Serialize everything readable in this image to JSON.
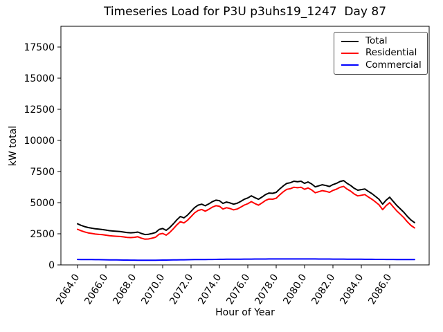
{
  "chart_data": {
    "type": "line",
    "title": "Timeseries Load for P3U p3uhs19_1247  Day 87",
    "xlabel": "Hour of Year",
    "ylabel": "kW total",
    "xlim": [
      2062.83,
      2088.78
    ],
    "ylim": [
      0,
      19166
    ],
    "grid": false,
    "legend_position": "upper right",
    "x_ticks": [
      {
        "value": 2064.0,
        "label": "2064.0"
      },
      {
        "value": 2066.0,
        "label": "2066.0"
      },
      {
        "value": 2068.0,
        "label": "2068.0"
      },
      {
        "value": 2070.0,
        "label": "2070.0"
      },
      {
        "value": 2072.0,
        "label": "2072.0"
      },
      {
        "value": 2074.0,
        "label": "2074.0"
      },
      {
        "value": 2076.0,
        "label": "2076.0"
      },
      {
        "value": 2078.0,
        "label": "2078.0"
      },
      {
        "value": 2080.0,
        "label": "2080.0"
      },
      {
        "value": 2082.0,
        "label": "2082.0"
      },
      {
        "value": 2084.0,
        "label": "2084.0"
      },
      {
        "value": 2086.0,
        "label": "2086.0"
      }
    ],
    "y_ticks": [
      0,
      2500,
      5000,
      7500,
      10000,
      12500,
      15000,
      17500
    ],
    "x": [
      2064.0,
      2064.25,
      2064.5,
      2064.75,
      2065.0,
      2065.25,
      2065.5,
      2065.75,
      2066.0,
      2066.25,
      2066.5,
      2066.75,
      2067.0,
      2067.25,
      2067.5,
      2067.75,
      2068.0,
      2068.25,
      2068.5,
      2068.75,
      2069.0,
      2069.25,
      2069.5,
      2069.75,
      2070.0,
      2070.25,
      2070.5,
      2070.75,
      2071.0,
      2071.25,
      2071.5,
      2071.75,
      2072.0,
      2072.25,
      2072.5,
      2072.75,
      2073.0,
      2073.25,
      2073.5,
      2073.75,
      2074.0,
      2074.25,
      2074.5,
      2074.75,
      2075.0,
      2075.25,
      2075.5,
      2075.75,
      2076.0,
      2076.25,
      2076.5,
      2076.75,
      2077.0,
      2077.25,
      2077.5,
      2077.75,
      2078.0,
      2078.25,
      2078.5,
      2078.75,
      2079.0,
      2079.25,
      2079.5,
      2079.75,
      2080.0,
      2080.25,
      2080.5,
      2080.75,
      2081.0,
      2081.25,
      2081.5,
      2081.75,
      2082.0,
      2082.25,
      2082.5,
      2082.75,
      2083.0,
      2083.25,
      2083.5,
      2083.75,
      2084.0,
      2084.25,
      2084.5,
      2084.75,
      2085.0,
      2085.25,
      2085.5,
      2085.75,
      2086.0,
      2086.25,
      2086.5,
      2086.75,
      2087.0,
      2087.25,
      2087.5,
      2087.75
    ],
    "series": [
      {
        "name": "Total",
        "color": "#000000",
        "values": [
          3300,
          3180,
          3080,
          3000,
          2950,
          2900,
          2870,
          2840,
          2800,
          2750,
          2720,
          2700,
          2680,
          2640,
          2600,
          2580,
          2600,
          2640,
          2530,
          2440,
          2460,
          2520,
          2600,
          2850,
          2920,
          2780,
          3000,
          3300,
          3620,
          3890,
          3780,
          4000,
          4300,
          4600,
          4800,
          4880,
          4750,
          4900,
          5080,
          5200,
          5160,
          4940,
          5050,
          4980,
          4880,
          4950,
          5100,
          5270,
          5380,
          5550,
          5400,
          5270,
          5450,
          5650,
          5770,
          5750,
          5830,
          6100,
          6350,
          6550,
          6600,
          6720,
          6680,
          6720,
          6550,
          6660,
          6500,
          6270,
          6350,
          6440,
          6380,
          6300,
          6450,
          6550,
          6700,
          6770,
          6550,
          6380,
          6150,
          6000,
          6050,
          6100,
          5900,
          5720,
          5500,
          5270,
          4880,
          5200,
          5440,
          5100,
          4770,
          4500,
          4220,
          3890,
          3600,
          3400
        ]
      },
      {
        "name": "Residential",
        "color": "#ff0000",
        "values": [
          2860,
          2745,
          2650,
          2570,
          2525,
          2480,
          2450,
          2425,
          2390,
          2345,
          2320,
          2300,
          2285,
          2250,
          2210,
          2195,
          2215,
          2260,
          2150,
          2065,
          2085,
          2145,
          2220,
          2465,
          2530,
          2390,
          2605,
          2900,
          3215,
          3480,
          3370,
          3585,
          3880,
          4175,
          4370,
          4450,
          4315,
          4460,
          4640,
          4755,
          4710,
          4490,
          4595,
          4525,
          4420,
          4490,
          4640,
          4805,
          4915,
          5085,
          4930,
          4800,
          4980,
          5180,
          5295,
          5275,
          5355,
          5625,
          5875,
          6070,
          6120,
          6240,
          6200,
          6240,
          6070,
          6182,
          6024,
          5795,
          5876,
          5968,
          5910,
          5830,
          5982,
          6084,
          6235,
          6306,
          6088,
          5920,
          5692,
          5544,
          5596,
          5648,
          5450,
          5272,
          5054,
          4826,
          4438,
          4760,
          5000,
          4662,
          4334,
          4065,
          3786,
          3457,
          3168,
          2970
        ]
      },
      {
        "name": "Commercial",
        "color": "#0000ff",
        "values": [
          440,
          435,
          430,
          430,
          425,
          420,
          420,
          415,
          410,
          405,
          400,
          400,
          395,
          390,
          390,
          385,
          385,
          380,
          380,
          375,
          375,
          375,
          380,
          385,
          390,
          390,
          395,
          400,
          405,
          410,
          410,
          415,
          420,
          425,
          430,
          430,
          435,
          440,
          440,
          445,
          450,
          450,
          455,
          455,
          460,
          460,
          460,
          465,
          465,
          465,
          470,
          470,
          470,
          470,
          475,
          475,
          475,
          475,
          475,
          480,
          480,
          480,
          480,
          480,
          480,
          478,
          476,
          475,
          474,
          472,
          470,
          470,
          468,
          466,
          465,
          464,
          462,
          460,
          458,
          456,
          454,
          452,
          450,
          448,
          446,
          444,
          442,
          440,
          440,
          438,
          436,
          435,
          434,
          433,
          432,
          430
        ]
      }
    ]
  }
}
